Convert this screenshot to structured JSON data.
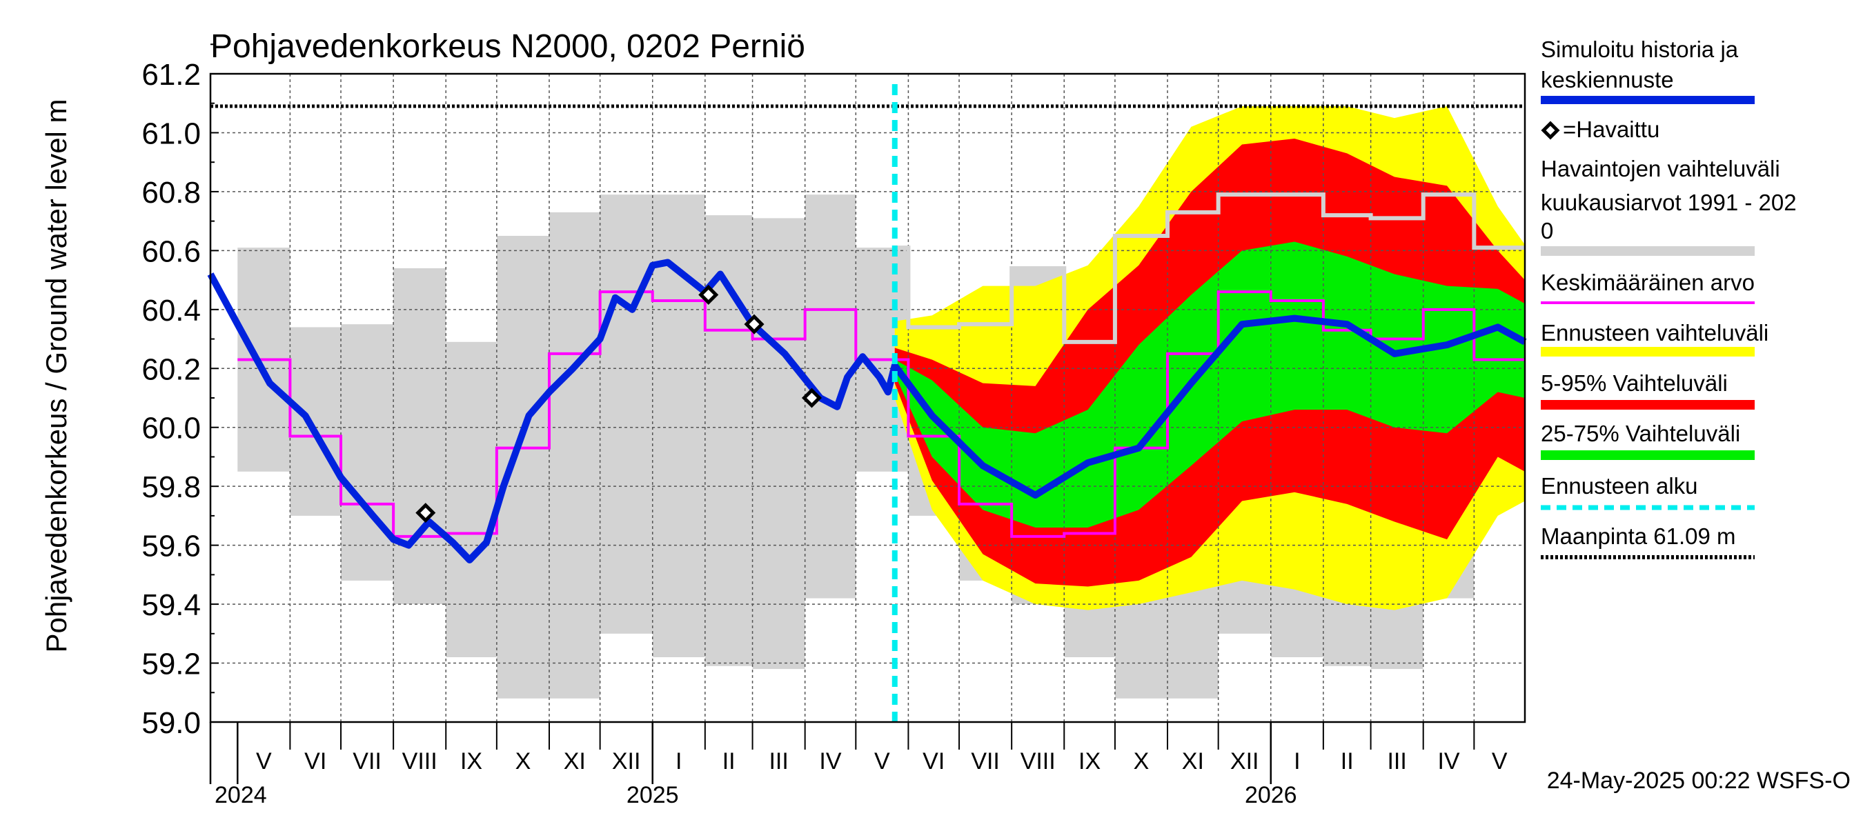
{
  "chart_data": {
    "type": "area",
    "title": "Pohjavedenkorkeus N2000, 0202 Perniö",
    "ylabel": "Pohjavedenkorkeus / Ground water level   m",
    "ylim": [
      59.0,
      61.2
    ],
    "yticks": [
      "59.0",
      "59.2",
      "59.4",
      "59.6",
      "59.8",
      "60.0",
      "60.2",
      "60.4",
      "60.6",
      "60.8",
      "61.0",
      "61.2"
    ],
    "x_range": [
      "2024-04-15",
      "2026-05-31"
    ],
    "month_labels": [
      "V",
      "VI",
      "VII",
      "VIII",
      "IX",
      "X",
      "XI",
      "XII",
      "I",
      "II",
      "III",
      "IV",
      "V",
      "VI",
      "VII",
      "VIII",
      "IX",
      "X",
      "XI",
      "XII",
      "I",
      "II",
      "III",
      "IV",
      "V"
    ],
    "year_labels": [
      {
        "text": "2024",
        "date": "2024-05-01"
      },
      {
        "text": "2025",
        "date": "2025-01-01"
      },
      {
        "text": "2026",
        "date": "2026-01-01"
      }
    ],
    "ground_level": 61.09,
    "forecast_start": "2025-05-24",
    "timestamp": "24-May-2025 00:22 WSFS-O",
    "grid": true,
    "legend_position": "right",
    "colors": {
      "simulated": "#0022dd",
      "observed": "#000000",
      "observed_range": "#d3d3d3",
      "mean": "#ff00ff",
      "forecast_range": "#ffff00",
      "range_5_95": "#ff0000",
      "range_25_75": "#00ee00",
      "forecast_start": "#00eeee",
      "ground": "#000000"
    },
    "legend": [
      {
        "key": "simulated",
        "lines": [
          "Simuloitu historia ja",
          "keskiennuste"
        ]
      },
      {
        "key": "observed",
        "lines": [
          "=Havaittu"
        ]
      },
      {
        "key": "observed_range",
        "lines": [
          "Havaintojen vaihteluväli",
          " kuukausiarvot 1991 - 202",
          "0"
        ]
      },
      {
        "key": "mean",
        "lines": [
          "Keskimääräinen arvo"
        ]
      },
      {
        "key": "forecast_range",
        "lines": [
          "Ennusteen vaihteluväli"
        ]
      },
      {
        "key": "range_5_95",
        "lines": [
          "5-95% Vaihteluväli"
        ]
      },
      {
        "key": "range_25_75",
        "lines": [
          "25-75% Vaihteluväli"
        ]
      },
      {
        "key": "forecast_start",
        "lines": [
          "Ennusteen alku"
        ]
      },
      {
        "key": "ground",
        "lines": [
          "Maanpinta 61.09 m"
        ]
      }
    ],
    "monthly_stats": [
      {
        "month": "2024-05",
        "min": 59.85,
        "mean": 60.23,
        "max": 60.61
      },
      {
        "month": "2024-06",
        "min": 59.7,
        "mean": 59.97,
        "max": 60.34
      },
      {
        "month": "2024-07",
        "min": 59.48,
        "mean": 59.74,
        "max": 60.35
      },
      {
        "month": "2024-08",
        "min": 59.4,
        "mean": 59.63,
        "max": 60.54
      },
      {
        "month": "2024-09",
        "min": 59.22,
        "mean": 59.64,
        "max": 60.29
      },
      {
        "month": "2024-10",
        "min": 59.08,
        "mean": 59.93,
        "max": 60.65
      },
      {
        "month": "2024-11",
        "min": 59.08,
        "mean": 60.25,
        "max": 60.73
      },
      {
        "month": "2024-12",
        "min": 59.3,
        "mean": 60.46,
        "max": 60.79
      },
      {
        "month": "2025-01",
        "min": 59.22,
        "mean": 60.43,
        "max": 60.79
      },
      {
        "month": "2025-02",
        "min": 59.19,
        "mean": 60.33,
        "max": 60.72
      },
      {
        "month": "2025-03",
        "min": 59.18,
        "mean": 60.3,
        "max": 60.71
      },
      {
        "month": "2025-04",
        "min": 59.42,
        "mean": 60.4,
        "max": 60.79
      },
      {
        "month": "2025-05",
        "min": 59.85,
        "mean": 60.23,
        "max": 60.61
      },
      {
        "month": "2025-06",
        "min": 59.7,
        "mean": 59.97,
        "max": 60.34
      },
      {
        "month": "2025-07",
        "min": 59.48,
        "mean": 59.74,
        "max": 60.35
      },
      {
        "month": "2025-08",
        "min": 59.4,
        "mean": 59.63,
        "max": 60.54
      },
      {
        "month": "2025-09",
        "min": 59.22,
        "mean": 59.64,
        "max": 60.29
      },
      {
        "month": "2025-10",
        "min": 59.08,
        "mean": 59.93,
        "max": 60.65
      },
      {
        "month": "2025-11",
        "min": 59.08,
        "mean": 60.25,
        "max": 60.73
      },
      {
        "month": "2025-12",
        "min": 59.3,
        "mean": 60.46,
        "max": 60.79
      },
      {
        "month": "2026-01",
        "min": 59.22,
        "mean": 60.43,
        "max": 60.79
      },
      {
        "month": "2026-02",
        "min": 59.19,
        "mean": 60.33,
        "max": 60.72
      },
      {
        "month": "2026-03",
        "min": 59.18,
        "mean": 60.3,
        "max": 60.71
      },
      {
        "month": "2026-04",
        "min": 59.42,
        "mean": 60.4,
        "max": 60.79
      },
      {
        "month": "2026-05",
        "min": 59.85,
        "mean": 60.23,
        "max": 60.61
      }
    ],
    "simulated_history": [
      {
        "date": "2024-04-15",
        "y": 60.52
      },
      {
        "date": "2024-05-01",
        "y": 60.35
      },
      {
        "date": "2024-05-20",
        "y": 60.15
      },
      {
        "date": "2024-06-10",
        "y": 60.04
      },
      {
        "date": "2024-07-01",
        "y": 59.83
      },
      {
        "date": "2024-07-20",
        "y": 59.7
      },
      {
        "date": "2024-08-01",
        "y": 59.62
      },
      {
        "date": "2024-08-10",
        "y": 59.6
      },
      {
        "date": "2024-08-22",
        "y": 59.68
      },
      {
        "date": "2024-09-05",
        "y": 59.61
      },
      {
        "date": "2024-09-15",
        "y": 59.55
      },
      {
        "date": "2024-09-25",
        "y": 59.61
      },
      {
        "date": "2024-10-05",
        "y": 59.8
      },
      {
        "date": "2024-10-20",
        "y": 60.04
      },
      {
        "date": "2024-11-01",
        "y": 60.12
      },
      {
        "date": "2024-11-15",
        "y": 60.2
      },
      {
        "date": "2024-12-01",
        "y": 60.3
      },
      {
        "date": "2024-12-10",
        "y": 60.44
      },
      {
        "date": "2024-12-20",
        "y": 60.4
      },
      {
        "date": "2025-01-01",
        "y": 60.55
      },
      {
        "date": "2025-01-10",
        "y": 60.56
      },
      {
        "date": "2025-02-01",
        "y": 60.46
      },
      {
        "date": "2025-02-10",
        "y": 60.52
      },
      {
        "date": "2025-03-01",
        "y": 60.35
      },
      {
        "date": "2025-03-20",
        "y": 60.25
      },
      {
        "date": "2025-04-10",
        "y": 60.1
      },
      {
        "date": "2025-04-20",
        "y": 60.07
      },
      {
        "date": "2025-04-26",
        "y": 60.17
      },
      {
        "date": "2025-05-05",
        "y": 60.24
      },
      {
        "date": "2025-05-15",
        "y": 60.17
      },
      {
        "date": "2025-05-20",
        "y": 60.12
      },
      {
        "date": "2025-05-24",
        "y": 60.21
      }
    ],
    "observed": [
      {
        "date": "2024-08-20",
        "y": 59.71
      },
      {
        "date": "2025-02-03",
        "y": 60.45
      },
      {
        "date": "2025-03-02",
        "y": 60.35
      },
      {
        "date": "2025-04-05",
        "y": 60.1
      }
    ],
    "forecast": [
      {
        "date": "2025-05-24",
        "median": 60.21,
        "p25": 60.18,
        "p75": 60.23,
        "p5": 60.15,
        "p95": 60.27,
        "min": 60.1,
        "max": 60.36
      },
      {
        "date": "2025-06-15",
        "median": 60.04,
        "p25": 59.9,
        "p75": 60.16,
        "p5": 59.82,
        "p95": 60.23,
        "min": 59.72,
        "max": 60.38
      },
      {
        "date": "2025-07-15",
        "median": 59.87,
        "p25": 59.72,
        "p75": 60.0,
        "p5": 59.57,
        "p95": 60.15,
        "min": 59.48,
        "max": 60.48
      },
      {
        "date": "2025-08-15",
        "median": 59.77,
        "p25": 59.66,
        "p75": 59.98,
        "p5": 59.47,
        "p95": 60.14,
        "min": 59.4,
        "max": 60.48
      },
      {
        "date": "2025-09-15",
        "median": 59.88,
        "p25": 59.66,
        "p75": 60.06,
        "p5": 59.46,
        "p95": 60.4,
        "min": 59.38,
        "max": 60.55
      },
      {
        "date": "2025-10-15",
        "median": 59.93,
        "p25": 59.72,
        "p75": 60.28,
        "p5": 59.48,
        "p95": 60.55,
        "min": 59.4,
        "max": 60.75
      },
      {
        "date": "2025-11-15",
        "median": 60.15,
        "p25": 59.87,
        "p75": 60.45,
        "p5": 59.56,
        "p95": 60.8,
        "min": 59.44,
        "max": 61.02
      },
      {
        "date": "2025-12-15",
        "median": 60.35,
        "p25": 60.02,
        "p75": 60.6,
        "p5": 59.75,
        "p95": 60.96,
        "min": 59.48,
        "max": 61.09
      },
      {
        "date": "2026-01-15",
        "median": 60.37,
        "p25": 60.06,
        "p75": 60.63,
        "p5": 59.78,
        "p95": 60.98,
        "min": 59.45,
        "max": 61.09
      },
      {
        "date": "2026-02-15",
        "median": 60.35,
        "p25": 60.06,
        "p75": 60.58,
        "p5": 59.74,
        "p95": 60.93,
        "min": 59.4,
        "max": 61.09
      },
      {
        "date": "2026-03-15",
        "median": 60.25,
        "p25": 60.0,
        "p75": 60.52,
        "p5": 59.68,
        "p95": 60.85,
        "min": 59.38,
        "max": 61.05
      },
      {
        "date": "2026-04-15",
        "median": 60.28,
        "p25": 59.98,
        "p75": 60.48,
        "p5": 59.62,
        "p95": 60.82,
        "min": 59.42,
        "max": 61.09
      },
      {
        "date": "2026-05-15",
        "median": 60.34,
        "p25": 60.12,
        "p75": 60.47,
        "p5": 59.9,
        "p95": 60.6,
        "min": 59.7,
        "max": 60.75
      },
      {
        "date": "2026-05-31",
        "median": 60.29,
        "p25": 60.1,
        "p75": 60.42,
        "p5": 59.85,
        "p95": 60.5,
        "min": 59.75,
        "max": 60.62
      }
    ]
  }
}
